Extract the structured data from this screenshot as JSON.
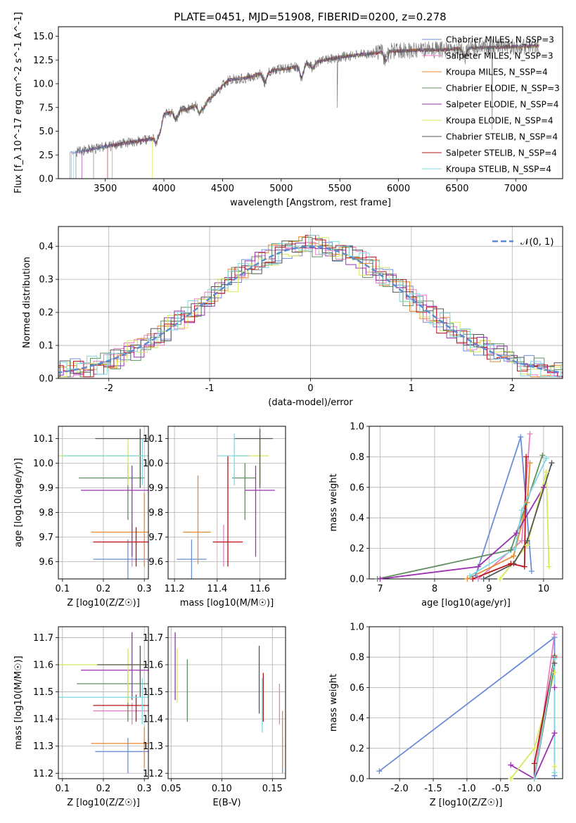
{
  "title": "PLATE=0451, MJD=51908, FIBERID=0200, z=0.278",
  "colors": {
    "chabrier_miles": "#6a8fd8",
    "salpeter_miles": "#e87fc0",
    "kroupa_miles": "#e8892e",
    "chabrier_elodie": "#5f8f5f",
    "salpeter_elodie": "#9b30b0",
    "kroupa_elodie": "#d8e85a",
    "chabrier_stelib": "#555555",
    "salpeter_stelib": "#b8141a",
    "kroupa_stelib": "#7fd8e0"
  },
  "legend": [
    {
      "key": "chabrier_miles",
      "text": "Chabrier MILES, N_SSP=3"
    },
    {
      "key": "salpeter_miles",
      "text": "Salpeter MILES, N_SSP=3"
    },
    {
      "key": "kroupa_miles",
      "text": "Kroupa MILES, N_SSP=4"
    },
    {
      "key": "chabrier_elodie",
      "text": "Chabrier ELODIE, N_SSP=3"
    },
    {
      "key": "salpeter_elodie",
      "text": "Salpeter ELODIE, N_SSP=4"
    },
    {
      "key": "kroupa_elodie",
      "text": "Kroupa ELODIE, N_SSP=4"
    },
    {
      "key": "chabrier_stelib",
      "text": "Chabrier STELIB, N_SSP=4"
    },
    {
      "key": "salpeter_stelib",
      "text": "Salpeter STELIB, N_SSP=4"
    },
    {
      "key": "kroupa_stelib",
      "text": "Kroupa STELIB, N_SSP=4"
    }
  ],
  "legend_normal": "𝒩(0, 1)",
  "chart_data": [
    {
      "id": "spectrum",
      "type": "line",
      "xlabel": "wavelength [Angstrom, rest frame]",
      "ylabel": "Flux [f_λ 10^-17 erg cm^-2 s^-1 A^-1]",
      "xlim": [
        3100,
        7400
      ],
      "ylim": [
        0,
        16
      ],
      "xticks": [
        3500,
        4000,
        4500,
        5000,
        5500,
        6000,
        6500,
        7000
      ],
      "yticks": [
        0.0,
        2.5,
        5.0,
        7.5,
        10.0,
        12.5,
        15.0
      ],
      "legend_position": "upper-right",
      "continuum": [
        [
          3200,
          2.7
        ],
        [
          3600,
          3.6
        ],
        [
          3900,
          4.2
        ],
        [
          4000,
          6.8
        ],
        [
          4200,
          7.3
        ],
        [
          4400,
          8.5
        ],
        [
          4550,
          10.4
        ],
        [
          4700,
          10.6
        ],
        [
          4900,
          11.3
        ],
        [
          5100,
          11.7
        ],
        [
          5300,
          12.3
        ],
        [
          5500,
          12.8
        ],
        [
          5700,
          13.1
        ],
        [
          5900,
          13.4
        ],
        [
          6100,
          13.5
        ],
        [
          6400,
          13.6
        ],
        [
          6700,
          13.8
        ],
        [
          7000,
          13.9
        ],
        [
          7200,
          14.0
        ]
      ],
      "absorption_dips": [
        [
          3934,
          1.2
        ],
        [
          3969,
          1.0
        ],
        [
          4102,
          0.8
        ],
        [
          4304,
          1.0
        ],
        [
          4341,
          0.7
        ],
        [
          4861,
          1.0
        ],
        [
          5175,
          1.3
        ],
        [
          5270,
          0.6
        ],
        [
          5893,
          1.0
        ],
        [
          6563,
          0.8
        ]
      ],
      "series_start": [
        3200,
        3210,
        3560,
        3400,
        3300,
        3900,
        3250,
        3520,
        3230
      ]
    },
    {
      "id": "residuals",
      "type": "step",
      "xlabel": "(data-model)/error",
      "ylabel": "Normed distribution",
      "xlim": [
        -2.5,
        2.5
      ],
      "ylim": [
        0,
        0.46
      ],
      "xticks": [
        -2,
        -1,
        0,
        1,
        2
      ],
      "yticks": [
        0.0,
        0.1,
        0.2,
        0.3,
        0.4
      ],
      "bin_width": 0.1,
      "grid": true,
      "series_name": "𝒩(0, 1)",
      "legend_position": "upper-right"
    },
    {
      "id": "age_vs_Z",
      "type": "errorbar",
      "xlabel": "Z [log10(Z/Z☉)]",
      "ylabel": "age  [log10(age/yr)]",
      "xlim": [
        0.09,
        0.31
      ],
      "ylim": [
        9.53,
        10.15
      ],
      "xticks": [
        0.1,
        0.2,
        0.3
      ],
      "yticks": [
        9.6,
        9.7,
        9.8,
        9.9,
        10.0,
        10.1
      ],
      "points": [
        {
          "key": "chabrier_miles",
          "x": 0.26,
          "y": 9.61,
          "xlo": 0.175,
          "xhi": 0.31,
          "ylo": 9.53,
          "yhi": 9.69
        },
        {
          "key": "salpeter_miles",
          "x": 0.27,
          "y": 9.68,
          "xlo": 0.2,
          "xhi": 0.31,
          "ylo": 9.58,
          "yhi": 9.75
        },
        {
          "key": "kroupa_miles",
          "x": 0.3,
          "y": 9.72,
          "xlo": 0.17,
          "xhi": 0.31,
          "ylo": 9.58,
          "yhi": 9.88
        },
        {
          "key": "chabrier_elodie",
          "x": 0.26,
          "y": 9.94,
          "xlo": 0.14,
          "xhi": 0.3,
          "ylo": 9.77,
          "yhi": 10.0
        },
        {
          "key": "salpeter_elodie",
          "x": 0.27,
          "y": 9.89,
          "xlo": 0.145,
          "xhi": 0.31,
          "ylo": 9.62,
          "yhi": 9.99
        },
        {
          "key": "kroupa_elodie",
          "x": 0.26,
          "y": 10.03,
          "xlo": 0.09,
          "xhi": 0.31,
          "ylo": 9.91,
          "yhi": 10.1
        },
        {
          "key": "chabrier_stelib",
          "x": 0.29,
          "y": 10.1,
          "xlo": 0.18,
          "xhi": 0.31,
          "ylo": 9.9,
          "yhi": 10.14
        },
        {
          "key": "salpeter_stelib",
          "x": 0.28,
          "y": 9.68,
          "xlo": 0.175,
          "xhi": 0.31,
          "ylo": 9.58,
          "yhi": 9.74
        },
        {
          "key": "kroupa_stelib",
          "x": 0.295,
          "y": 10.03,
          "xlo": 0.1,
          "xhi": 0.31,
          "ylo": 9.91,
          "yhi": 10.1
        }
      ]
    },
    {
      "id": "age_vs_mass",
      "type": "errorbar",
      "xlabel": "mass [log10(M/M☉)]",
      "xlim": [
        11.17,
        11.72
      ],
      "ylim": [
        9.53,
        10.15
      ],
      "xticks": [
        11.2,
        11.4,
        11.6
      ],
      "yticks": [
        9.6,
        9.7,
        9.8,
        9.9,
        10.0,
        10.1
      ],
      "points": [
        {
          "key": "chabrier_miles",
          "x": 11.28,
          "y": 9.61,
          "xlo": 11.21,
          "xhi": 11.35,
          "ylo": 9.53,
          "yhi": 9.69
        },
        {
          "key": "salpeter_miles",
          "x": 11.43,
          "y": 9.68,
          "xlo": 11.38,
          "xhi": 11.47,
          "ylo": 9.58,
          "yhi": 9.75
        },
        {
          "key": "kroupa_miles",
          "x": 11.31,
          "y": 9.72,
          "xlo": 11.24,
          "xhi": 11.37,
          "ylo": 9.59,
          "yhi": 9.95
        },
        {
          "key": "chabrier_elodie",
          "x": 11.53,
          "y": 9.94,
          "xlo": 11.47,
          "xhi": 11.58,
          "ylo": 9.77,
          "yhi": 10.0
        },
        {
          "key": "salpeter_elodie",
          "x": 11.58,
          "y": 9.89,
          "xlo": 11.53,
          "xhi": 11.67,
          "ylo": 9.62,
          "yhi": 9.99
        },
        {
          "key": "kroupa_elodie",
          "x": 11.6,
          "y": 10.03,
          "xlo": 11.47,
          "xhi": 11.64,
          "ylo": 9.91,
          "yhi": 10.1
        },
        {
          "key": "chabrier_stelib",
          "x": 11.6,
          "y": 10.1,
          "xlo": 11.48,
          "xhi": 11.66,
          "ylo": 9.9,
          "yhi": 10.14
        },
        {
          "key": "salpeter_stelib",
          "x": 11.45,
          "y": 9.68,
          "xlo": 11.38,
          "xhi": 11.52,
          "ylo": 9.58,
          "yhi": 10.03
        },
        {
          "key": "kroupa_stelib",
          "x": 11.48,
          "y": 10.03,
          "xlo": 11.4,
          "xhi": 11.55,
          "ylo": 9.91,
          "yhi": 10.12
        }
      ]
    },
    {
      "id": "mass_vs_Z",
      "type": "errorbar",
      "xlabel": "Z [log10(Z/Z☉)]",
      "ylabel": "mass [log10(M/M☉)]",
      "xlim": [
        0.09,
        0.31
      ],
      "ylim": [
        11.18,
        11.74
      ],
      "xticks": [
        0.1,
        0.2,
        0.3
      ],
      "yticks": [
        11.2,
        11.3,
        11.4,
        11.5,
        11.6,
        11.7
      ],
      "points": [
        {
          "key": "chabrier_miles",
          "x": 0.26,
          "y": 11.28,
          "xlo": 0.18,
          "xhi": 0.31,
          "ylo": 11.2,
          "yhi": 11.33
        },
        {
          "key": "salpeter_miles",
          "x": 0.27,
          "y": 11.43,
          "xlo": 0.175,
          "xhi": 0.31,
          "ylo": 11.38,
          "yhi": 11.46
        },
        {
          "key": "kroupa_miles",
          "x": 0.3,
          "y": 11.31,
          "xlo": 0.17,
          "xhi": 0.31,
          "ylo": 11.22,
          "yhi": 11.37
        },
        {
          "key": "chabrier_elodie",
          "x": 0.26,
          "y": 11.53,
          "xlo": 0.135,
          "xhi": 0.31,
          "ylo": 11.39,
          "yhi": 11.58
        },
        {
          "key": "salpeter_elodie",
          "x": 0.27,
          "y": 11.58,
          "xlo": 0.145,
          "xhi": 0.31,
          "ylo": 11.47,
          "yhi": 11.72
        },
        {
          "key": "kroupa_elodie",
          "x": 0.26,
          "y": 11.6,
          "xlo": 0.09,
          "xhi": 0.31,
          "ylo": 11.46,
          "yhi": 11.66
        },
        {
          "key": "chabrier_stelib",
          "x": 0.29,
          "y": 11.6,
          "xlo": 0.185,
          "xhi": 0.31,
          "ylo": 11.48,
          "yhi": 11.67
        },
        {
          "key": "salpeter_stelib",
          "x": 0.28,
          "y": 11.45,
          "xlo": 0.175,
          "xhi": 0.31,
          "ylo": 11.39,
          "yhi": 11.49
        },
        {
          "key": "kroupa_stelib",
          "x": 0.295,
          "y": 11.48,
          "xlo": 0.09,
          "xhi": 0.31,
          "ylo": 11.38,
          "yhi": 11.55
        }
      ]
    },
    {
      "id": "mass_vs_ebv",
      "type": "errorbar",
      "xlabel": "E(B-V)",
      "xlim": [
        0.047,
        0.163
      ],
      "ylim": [
        11.18,
        11.74
      ],
      "xticks": [
        0.05,
        0.1,
        0.15
      ],
      "yticks": [
        11.2,
        11.3,
        11.4,
        11.5,
        11.6,
        11.7
      ],
      "points": [
        {
          "key": "chabrier_miles",
          "x": 0.16,
          "y": 11.28,
          "ylo": 11.2,
          "yhi": 11.33
        },
        {
          "key": "salpeter_miles",
          "x": 0.157,
          "y": 11.43,
          "ylo": 11.38,
          "yhi": 11.53
        },
        {
          "key": "kroupa_miles",
          "x": 0.16,
          "y": 11.31,
          "ylo": 11.22,
          "yhi": 11.43
        },
        {
          "key": "chabrier_elodie",
          "x": 0.066,
          "y": 11.53,
          "ylo": 11.39,
          "yhi": 11.62
        },
        {
          "key": "salpeter_elodie",
          "x": 0.054,
          "y": 11.58,
          "ylo": 11.47,
          "yhi": 11.72
        },
        {
          "key": "kroupa_elodie",
          "x": 0.056,
          "y": 11.6,
          "ylo": 11.46,
          "yhi": 11.66
        },
        {
          "key": "chabrier_stelib",
          "x": 0.137,
          "y": 11.6,
          "ylo": 11.42,
          "yhi": 11.67
        },
        {
          "key": "salpeter_stelib",
          "x": 0.141,
          "y": 11.45,
          "ylo": 11.39,
          "yhi": 11.57
        },
        {
          "key": "kroupa_stelib",
          "x": 0.14,
          "y": 11.48,
          "ylo": 11.35,
          "yhi": 11.55
        }
      ]
    },
    {
      "id": "weight_vs_age",
      "type": "line",
      "xlabel": "age  [log10(age/yr)]",
      "ylabel": "mass weight",
      "xlim": [
        6.8,
        10.35
      ],
      "ylim": [
        0,
        1.0
      ],
      "xticks": [
        7,
        8,
        9,
        10
      ],
      "yticks": [
        0.0,
        0.2,
        0.4,
        0.6,
        0.8,
        1.0
      ],
      "series": [
        {
          "key": "chabrier_miles",
          "points": [
            [
              8.75,
              0.02
            ],
            [
              9.58,
              0.93
            ],
            [
              9.78,
              0.05
            ]
          ]
        },
        {
          "key": "salpeter_miles",
          "points": [
            [
              8.8,
              0.0
            ],
            [
              9.6,
              0.25
            ],
            [
              9.75,
              0.95
            ]
          ]
        },
        {
          "key": "kroupa_miles",
          "points": [
            [
              8.6,
              0.0
            ],
            [
              9.45,
              0.15
            ],
            [
              9.7,
              0.5
            ],
            [
              9.75,
              0.76
            ]
          ]
        },
        {
          "key": "chabrier_elodie",
          "points": [
            [
              6.95,
              0.0
            ],
            [
              9.4,
              0.19
            ],
            [
              9.98,
              0.81
            ]
          ]
        },
        {
          "key": "salpeter_elodie",
          "points": [
            [
              7.0,
              0.0
            ],
            [
              8.8,
              0.08
            ],
            [
              9.5,
              0.3
            ],
            [
              10.0,
              0.6
            ]
          ]
        },
        {
          "key": "kroupa_elodie",
          "points": [
            [
              9.2,
              0.0
            ],
            [
              9.7,
              0.22
            ],
            [
              10.05,
              0.7
            ],
            [
              10.1,
              0.08
            ]
          ]
        },
        {
          "key": "chabrier_stelib",
          "points": [
            [
              8.9,
              0.0
            ],
            [
              9.45,
              0.1
            ],
            [
              9.7,
              0.25
            ],
            [
              10.15,
              0.76
            ]
          ]
        },
        {
          "key": "salpeter_stelib",
          "points": [
            [
              8.7,
              0.0
            ],
            [
              9.4,
              0.1
            ],
            [
              9.65,
              0.08
            ],
            [
              9.68,
              0.8
            ]
          ]
        },
        {
          "key": "kroupa_stelib",
          "points": [
            [
              8.65,
              0.02
            ],
            [
              9.48,
              0.2
            ],
            [
              9.6,
              0.45
            ],
            [
              10.05,
              0.79
            ]
          ]
        }
      ]
    },
    {
      "id": "weight_vs_Z",
      "type": "line",
      "xlabel": "Z [log10(Z/Z☉)]",
      "ylabel": "mass weight",
      "xlim": [
        -2.45,
        0.42
      ],
      "ylim": [
        0,
        1.0
      ],
      "xticks": [
        -2.0,
        -1.5,
        -1.0,
        -0.5,
        0.0
      ],
      "yticks": [
        0.0,
        0.2,
        0.4,
        0.6,
        0.8,
        1.0
      ],
      "series": [
        {
          "key": "chabrier_miles",
          "points": [
            [
              -2.3,
              0.05
            ],
            [
              0.3,
              0.93
            ],
            [
              0.3,
              0.02
            ]
          ]
        },
        {
          "key": "salpeter_miles",
          "points": [
            [
              0.0,
              0.0
            ],
            [
              0.3,
              0.95
            ]
          ]
        },
        {
          "key": "kroupa_miles",
          "points": [
            [
              0.0,
              0.0
            ],
            [
              0.3,
              0.76
            ]
          ]
        },
        {
          "key": "chabrier_elodie",
          "points": [
            [
              0.0,
              0.0
            ],
            [
              0.3,
              0.81
            ]
          ]
        },
        {
          "key": "salpeter_elodie",
          "points": [
            [
              -0.35,
              0.09
            ],
            [
              0.0,
              0.0
            ],
            [
              0.3,
              0.3
            ],
            [
              0.3,
              0.6
            ]
          ]
        },
        {
          "key": "kroupa_elodie",
          "points": [
            [
              -0.35,
              0.0
            ],
            [
              0.0,
              0.2
            ],
            [
              0.3,
              0.7
            ],
            [
              0.3,
              0.08
            ]
          ]
        },
        {
          "key": "chabrier_stelib",
          "points": [
            [
              0.0,
              0.0
            ],
            [
              0.3,
              0.76
            ]
          ]
        },
        {
          "key": "salpeter_stelib",
          "points": [
            [
              0.0,
              0.0
            ],
            [
              0.0,
              0.1
            ],
            [
              0.3,
              0.8
            ]
          ]
        },
        {
          "key": "kroupa_stelib",
          "points": [
            [
              0.0,
              0.0
            ],
            [
              0.3,
              0.79
            ],
            [
              0.3,
              0.04
            ]
          ]
        }
      ]
    }
  ]
}
